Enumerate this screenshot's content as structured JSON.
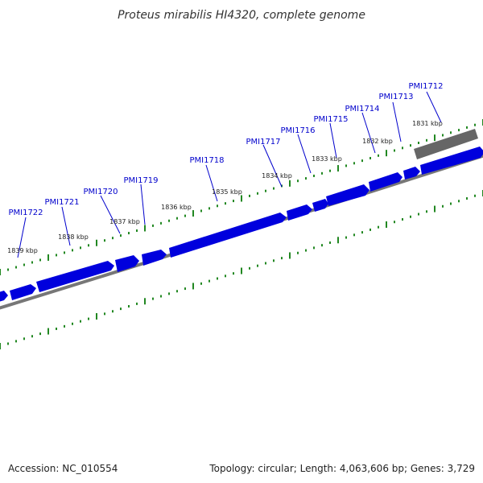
{
  "header": {
    "title": "Proteus mirabilis HI4320, complete genome"
  },
  "footer": {
    "accession": "Accession: NC_010554",
    "summary": "Topology: circular; Length: 4,063,606 bp; Genes: 3,729"
  },
  "colors": {
    "gene": "#0000dd",
    "gene_highlight": "#666666",
    "backbone": "#777777",
    "tick": "#228822",
    "leader": "#0000cc"
  },
  "scale_labels": [
    "1831 kbp",
    "1832 kbp",
    "1833 kbp",
    "1834 kbp",
    "1835 kbp",
    "1836 kbp",
    "1837 kbp",
    "1838 kbp",
    "1839 kbp"
  ],
  "genes": [
    "PMI1712",
    "PMI1713",
    "PMI1714",
    "PMI1715",
    "PMI1716",
    "PMI1717",
    "PMI1718",
    "PMI1719",
    "PMI1720",
    "PMI1721",
    "PMI1722"
  ]
}
